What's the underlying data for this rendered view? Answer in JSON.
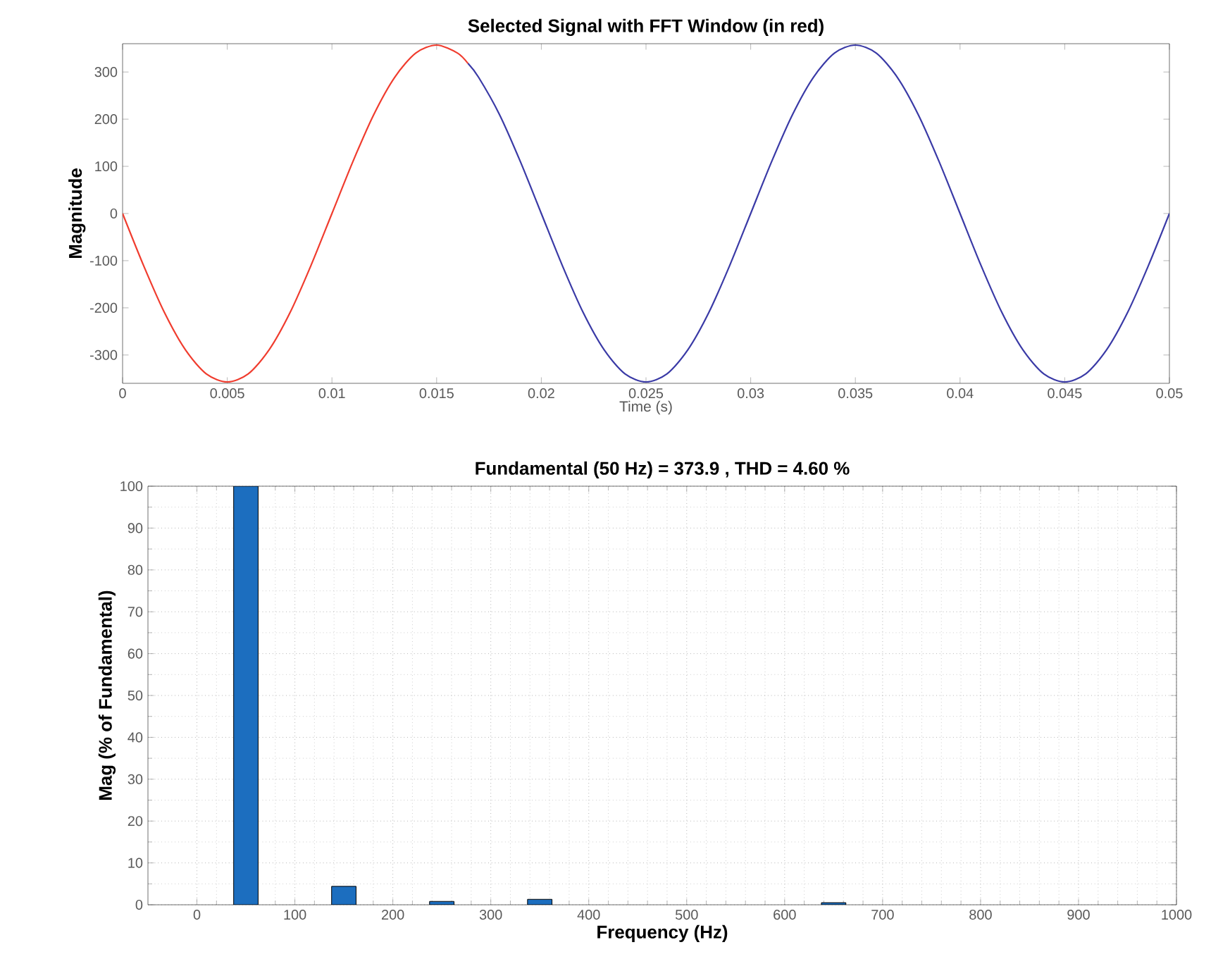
{
  "chart_data": [
    {
      "type": "line",
      "title": "Selected Signal with FFT Window (in red)",
      "xlabel": "Time (s)",
      "ylabel": "Magnitude",
      "xlim": [
        0,
        0.05
      ],
      "ylim": [
        -360,
        360
      ],
      "xticks": [
        0,
        0.005,
        0.01,
        0.015,
        0.02,
        0.025,
        0.03,
        0.035,
        0.04,
        0.045,
        0.05
      ],
      "yticks": [
        -300,
        -200,
        -100,
        0,
        100,
        200,
        300
      ],
      "series": [
        {
          "color": "#f03c2e",
          "x": [
            0,
            0.001,
            0.002,
            0.003,
            0.004,
            0.005,
            0.006,
            0.007,
            0.008,
            0.009,
            0.01,
            0.011,
            0.012,
            0.013,
            0.014,
            0.015,
            0.016,
            0.0165
          ],
          "values": [
            0,
            -110,
            -210,
            -289,
            -340,
            -357,
            -340,
            -289,
            -210,
            -110,
            0,
            110,
            210,
            289,
            340,
            357,
            340,
            318
          ]
        },
        {
          "color": "#3a3aa6",
          "x": [
            0.0165,
            0.017,
            0.018,
            0.019,
            0.02,
            0.021,
            0.022,
            0.023,
            0.024,
            0.025,
            0.026,
            0.027,
            0.028,
            0.029,
            0.03,
            0.031,
            0.032,
            0.033,
            0.034,
            0.035,
            0.036,
            0.037,
            0.038,
            0.039,
            0.04,
            0.041,
            0.042,
            0.043,
            0.044,
            0.045,
            0.046,
            0.047,
            0.048,
            0.049,
            0.05
          ],
          "values": [
            318,
            289,
            210,
            110,
            0,
            -110,
            -210,
            -289,
            -340,
            -357,
            -340,
            -289,
            -210,
            -110,
            0,
            110,
            210,
            289,
            340,
            357,
            340,
            289,
            210,
            110,
            0,
            -110,
            -210,
            -289,
            -340,
            -357,
            -340,
            -289,
            -210,
            -110,
            0
          ]
        }
      ]
    },
    {
      "type": "bar",
      "title": "Fundamental (50 Hz) = 373.9 , THD = 4.60 %",
      "xlabel": "Frequency (Hz)",
      "ylabel": "Mag (% of Fundamental)",
      "xlim": [
        -50,
        1000
      ],
      "ylim": [
        0,
        100
      ],
      "xticks": [
        0,
        100,
        200,
        300,
        400,
        500,
        600,
        700,
        800,
        900,
        1000
      ],
      "yticks": [
        0,
        10,
        20,
        30,
        40,
        50,
        60,
        70,
        80,
        90,
        100
      ],
      "grid": true,
      "x": [
        50,
        150,
        250,
        350,
        650
      ],
      "values": [
        100,
        4.4,
        0.8,
        1.3,
        0.5
      ],
      "color": "#1c6ebf"
    }
  ]
}
